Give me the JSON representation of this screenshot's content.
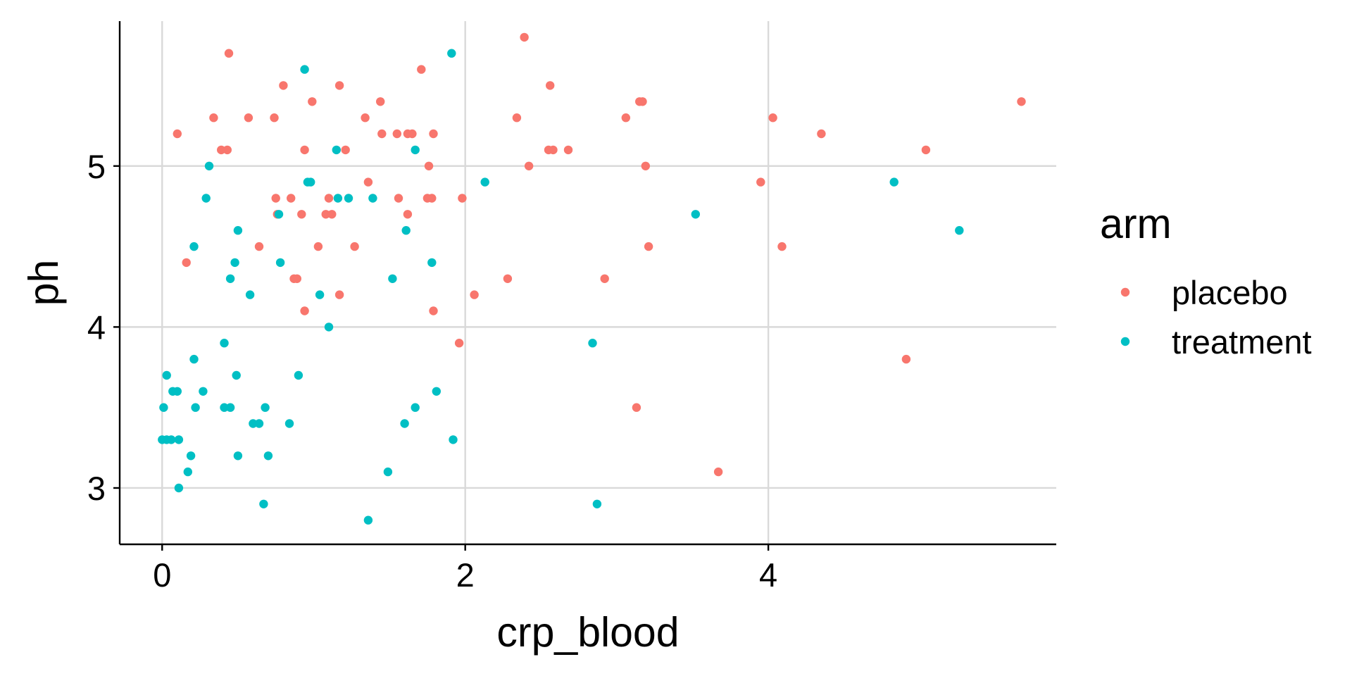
{
  "chart_data": {
    "type": "scatter",
    "title": "",
    "xlabel": "crp_blood",
    "ylabel": "ph",
    "xlim": [
      -0.28,
      5.9
    ],
    "ylim": [
      2.65,
      5.9
    ],
    "xticks": [
      0,
      2,
      4
    ],
    "yticks": [
      3,
      4,
      5
    ],
    "xtick_labels": [
      "0",
      "2",
      "4"
    ],
    "ytick_labels": [
      "3",
      "4",
      "5"
    ],
    "grid": true,
    "legend": {
      "title": "arm",
      "placement": "right",
      "entries": [
        "placebo",
        "treatment"
      ]
    },
    "colors": {
      "placebo": "#F8766D",
      "treatment": "#00BFC4",
      "grid": "#d9d9d9",
      "axis": "#000000"
    },
    "series": [
      {
        "name": "placebo",
        "points": [
          [
            0.1,
            5.2
          ],
          [
            0.16,
            4.4
          ],
          [
            0.34,
            5.3
          ],
          [
            0.39,
            5.1
          ],
          [
            0.43,
            5.1
          ],
          [
            0.44,
            5.7
          ],
          [
            0.57,
            5.3
          ],
          [
            0.64,
            4.5
          ],
          [
            0.74,
            5.3
          ],
          [
            0.75,
            4.8
          ],
          [
            0.76,
            4.7
          ],
          [
            0.8,
            5.5
          ],
          [
            0.85,
            4.8
          ],
          [
            0.87,
            4.3
          ],
          [
            0.89,
            4.3
          ],
          [
            0.92,
            4.7
          ],
          [
            0.94,
            5.1
          ],
          [
            0.94,
            4.1
          ],
          [
            0.99,
            5.4
          ],
          [
            1.03,
            4.5
          ],
          [
            1.08,
            4.7
          ],
          [
            1.1,
            4.8
          ],
          [
            1.12,
            4.7
          ],
          [
            1.17,
            5.5
          ],
          [
            1.17,
            4.2
          ],
          [
            1.21,
            5.1
          ],
          [
            1.27,
            4.5
          ],
          [
            1.34,
            5.3
          ],
          [
            1.36,
            4.9
          ],
          [
            1.44,
            5.4
          ],
          [
            1.45,
            5.2
          ],
          [
            1.55,
            5.2
          ],
          [
            1.56,
            4.8
          ],
          [
            1.62,
            4.7
          ],
          [
            1.62,
            5.2
          ],
          [
            1.65,
            5.2
          ],
          [
            1.71,
            5.6
          ],
          [
            1.75,
            4.8
          ],
          [
            1.76,
            5.0
          ],
          [
            1.78,
            4.8
          ],
          [
            1.79,
            5.2
          ],
          [
            1.79,
            4.1
          ],
          [
            1.96,
            3.9
          ],
          [
            1.98,
            4.8
          ],
          [
            2.06,
            4.2
          ],
          [
            2.28,
            4.3
          ],
          [
            2.34,
            5.3
          ],
          [
            2.39,
            5.8
          ],
          [
            2.42,
            5.0
          ],
          [
            2.55,
            5.1
          ],
          [
            2.56,
            5.5
          ],
          [
            2.58,
            5.1
          ],
          [
            2.68,
            5.1
          ],
          [
            2.92,
            4.3
          ],
          [
            3.06,
            5.3
          ],
          [
            3.13,
            3.5
          ],
          [
            3.15,
            5.4
          ],
          [
            3.17,
            5.4
          ],
          [
            3.19,
            5.0
          ],
          [
            3.21,
            4.5
          ],
          [
            3.67,
            3.1
          ],
          [
            3.95,
            4.9
          ],
          [
            4.03,
            5.3
          ],
          [
            4.09,
            4.5
          ],
          [
            4.35,
            5.2
          ],
          [
            4.91,
            3.8
          ],
          [
            5.04,
            5.1
          ],
          [
            5.67,
            5.4
          ]
        ]
      },
      {
        "name": "treatment",
        "points": [
          [
            0.0,
            3.3
          ],
          [
            0.01,
            3.5
          ],
          [
            0.03,
            3.3
          ],
          [
            0.03,
            3.7
          ],
          [
            0.06,
            3.3
          ],
          [
            0.07,
            3.6
          ],
          [
            0.1,
            3.6
          ],
          [
            0.11,
            3.3
          ],
          [
            0.11,
            3.0
          ],
          [
            0.17,
            3.1
          ],
          [
            0.19,
            3.2
          ],
          [
            0.21,
            4.5
          ],
          [
            0.21,
            3.8
          ],
          [
            0.22,
            3.5
          ],
          [
            0.27,
            3.6
          ],
          [
            0.29,
            4.8
          ],
          [
            0.31,
            5.0
          ],
          [
            0.41,
            3.9
          ],
          [
            0.41,
            3.5
          ],
          [
            0.45,
            4.3
          ],
          [
            0.45,
            3.5
          ],
          [
            0.48,
            4.4
          ],
          [
            0.49,
            3.7
          ],
          [
            0.5,
            4.6
          ],
          [
            0.5,
            3.2
          ],
          [
            0.58,
            4.2
          ],
          [
            0.6,
            3.4
          ],
          [
            0.64,
            3.4
          ],
          [
            0.67,
            2.9
          ],
          [
            0.68,
            3.5
          ],
          [
            0.7,
            3.2
          ],
          [
            0.77,
            4.7
          ],
          [
            0.78,
            4.4
          ],
          [
            0.84,
            3.4
          ],
          [
            0.9,
            3.7
          ],
          [
            0.94,
            5.6
          ],
          [
            0.96,
            4.9
          ],
          [
            0.98,
            4.9
          ],
          [
            1.04,
            4.2
          ],
          [
            1.1,
            4.0
          ],
          [
            1.15,
            5.1
          ],
          [
            1.16,
            4.8
          ],
          [
            1.23,
            4.8
          ],
          [
            1.36,
            2.8
          ],
          [
            1.39,
            4.8
          ],
          [
            1.49,
            3.1
          ],
          [
            1.52,
            4.3
          ],
          [
            1.6,
            3.4
          ],
          [
            1.61,
            4.6
          ],
          [
            1.67,
            3.5
          ],
          [
            1.67,
            5.1
          ],
          [
            1.78,
            4.4
          ],
          [
            1.81,
            3.6
          ],
          [
            1.91,
            5.7
          ],
          [
            1.92,
            3.3
          ],
          [
            2.13,
            4.9
          ],
          [
            2.84,
            3.9
          ],
          [
            2.87,
            2.9
          ],
          [
            3.52,
            4.7
          ],
          [
            4.83,
            4.9
          ],
          [
            5.26,
            4.6
          ]
        ]
      }
    ]
  }
}
